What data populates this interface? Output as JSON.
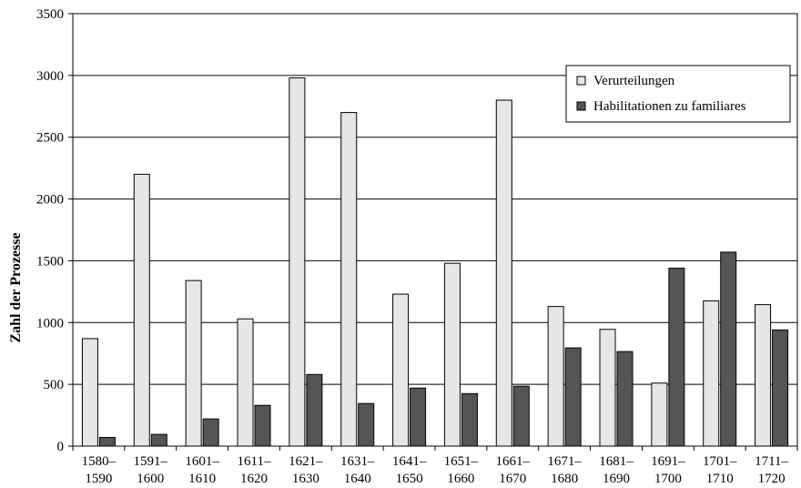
{
  "chart_data": {
    "type": "bar",
    "categories": [
      [
        "1580–",
        "1590"
      ],
      [
        "1591–",
        "1600"
      ],
      [
        "1601–",
        "1610"
      ],
      [
        "1611–",
        "1620"
      ],
      [
        "1621–",
        "1630"
      ],
      [
        "1631–",
        "1640"
      ],
      [
        "1641–",
        "1650"
      ],
      [
        "1651–",
        "1660"
      ],
      [
        "1661–",
        "1670"
      ],
      [
        "1671–",
        "1680"
      ],
      [
        "1681–",
        "1690"
      ],
      [
        "1691–",
        "1700"
      ],
      [
        "1701–",
        "1710"
      ],
      [
        "1711–",
        "1720"
      ]
    ],
    "series": [
      {
        "name": "Verurteilungen",
        "color": "#e6e6e6",
        "values": [
          870,
          2200,
          1340,
          1030,
          2980,
          2700,
          1230,
          1480,
          2800,
          1130,
          945,
          510,
          1175,
          1145
        ]
      },
      {
        "name": "Habilitationen zu familiares",
        "color": "#555555",
        "values": [
          70,
          95,
          220,
          330,
          580,
          345,
          470,
          425,
          485,
          795,
          765,
          1440,
          1570,
          940
        ]
      }
    ],
    "ylabel": "Zahl der Prozesse",
    "xlabel": "",
    "title": "",
    "ylim": [
      0,
      3500
    ],
    "yticks": [
      0,
      500,
      1000,
      1500,
      2000,
      2500,
      3000,
      3500
    ],
    "grid": true,
    "legend_position": "top-right",
    "bar_stroke": "#000000"
  }
}
